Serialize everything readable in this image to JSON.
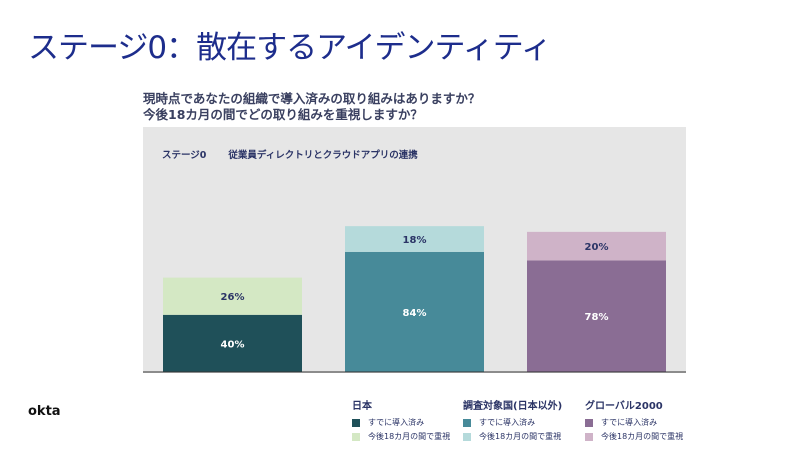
{
  "title": "ステージ0：散在するアイデンティティ",
  "questions": [
    "現時点であなたの組織で導入済みの取り組みはありますか？",
    "今後18カ月の間でどの取り組みを重視しますか？"
  ],
  "stage_label": "ステージ0",
  "stage_desc": "従業員ディレクトリとクラウドアプリの連携",
  "logo": "okta",
  "chart_data": {
    "type": "bar",
    "stacked": true,
    "categories": [
      "日本",
      "調査対象国(日本以外)",
      "グローバル2000"
    ],
    "series": [
      {
        "name": "すでに導入済み",
        "values": [
          40,
          84,
          78
        ],
        "colors": [
          "#1f5059",
          "#478a99",
          "#8a6d94"
        ]
      },
      {
        "name": "今後18カ月の間で重視",
        "values": [
          26,
          18,
          20
        ],
        "colors": [
          "#d4e8c4",
          "#b5dadb",
          "#cfb3c8"
        ]
      }
    ],
    "ylim": [
      0,
      100
    ],
    "grid": false,
    "legend": "bottom"
  }
}
